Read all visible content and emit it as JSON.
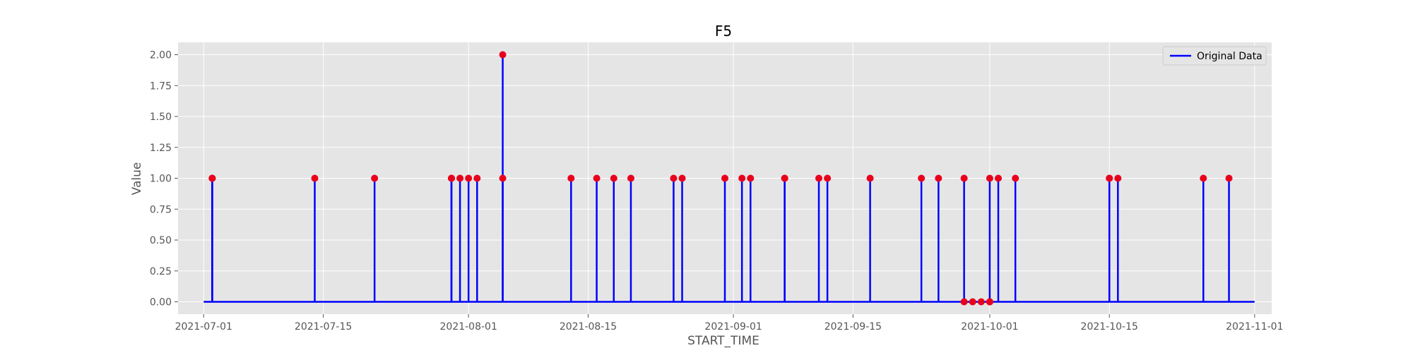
{
  "chart_data": {
    "type": "line",
    "title": "F5",
    "xlabel": "START_TIME",
    "ylabel": "Value",
    "xlim": [
      "2021-06-28",
      "2021-11-03"
    ],
    "ylim": [
      -0.1,
      2.1
    ],
    "x_ticks": [
      "2021-07-01",
      "2021-07-15",
      "2021-08-01",
      "2021-08-15",
      "2021-09-01",
      "2021-09-15",
      "2021-10-01",
      "2021-10-15",
      "2021-11-01"
    ],
    "y_ticks": [
      "0.00",
      "0.25",
      "0.50",
      "0.75",
      "1.00",
      "1.25",
      "1.50",
      "1.75",
      "2.00"
    ],
    "grid": true,
    "legend": {
      "position": "top-right",
      "entries": [
        "Original Data"
      ]
    },
    "series": [
      {
        "name": "Original Data",
        "color": "#0000ff",
        "baseline": 0,
        "range": [
          "2021-07-01",
          "2021-11-01"
        ],
        "points": [
          [
            "2021-07-02",
            1
          ],
          [
            "2021-07-02",
            1
          ],
          [
            "2021-07-02",
            1
          ],
          [
            "2021-07-14",
            1
          ],
          [
            "2021-07-21",
            1
          ],
          [
            "2021-07-30",
            1
          ],
          [
            "2021-07-30",
            1
          ],
          [
            "2021-07-31",
            1
          ],
          [
            "2021-08-01",
            1
          ],
          [
            "2021-08-02",
            1
          ],
          [
            "2021-08-05",
            2
          ],
          [
            "2021-08-05",
            1
          ],
          [
            "2021-08-13",
            1
          ],
          [
            "2021-08-16",
            1
          ],
          [
            "2021-08-18",
            1
          ],
          [
            "2021-08-20",
            1
          ],
          [
            "2021-08-25",
            1
          ],
          [
            "2021-08-26",
            1
          ],
          [
            "2021-08-31",
            1
          ],
          [
            "2021-09-02",
            1
          ],
          [
            "2021-09-03",
            1
          ],
          [
            "2021-09-07",
            1
          ],
          [
            "2021-09-07",
            1
          ],
          [
            "2021-09-11",
            1
          ],
          [
            "2021-09-12",
            1
          ],
          [
            "2021-09-17",
            1
          ],
          [
            "2021-09-23",
            1
          ],
          [
            "2021-09-25",
            1
          ],
          [
            "2021-09-28",
            1
          ],
          [
            "2021-09-28",
            0
          ],
          [
            "2021-09-29",
            0
          ],
          [
            "2021-09-30",
            0
          ],
          [
            "2021-10-01",
            0
          ],
          [
            "2021-10-01",
            0
          ],
          [
            "2021-10-01",
            0
          ],
          [
            "2021-10-01",
            1
          ],
          [
            "2021-10-02",
            1
          ],
          [
            "2021-10-04",
            1
          ],
          [
            "2021-10-15",
            1
          ],
          [
            "2021-10-15",
            1
          ],
          [
            "2021-10-16",
            1
          ],
          [
            "2021-10-26",
            1
          ],
          [
            "2021-10-29",
            1
          ]
        ]
      }
    ],
    "marker_color": "#e8001c",
    "background": "#e5e5e5",
    "grid_color": "#ffffff"
  }
}
